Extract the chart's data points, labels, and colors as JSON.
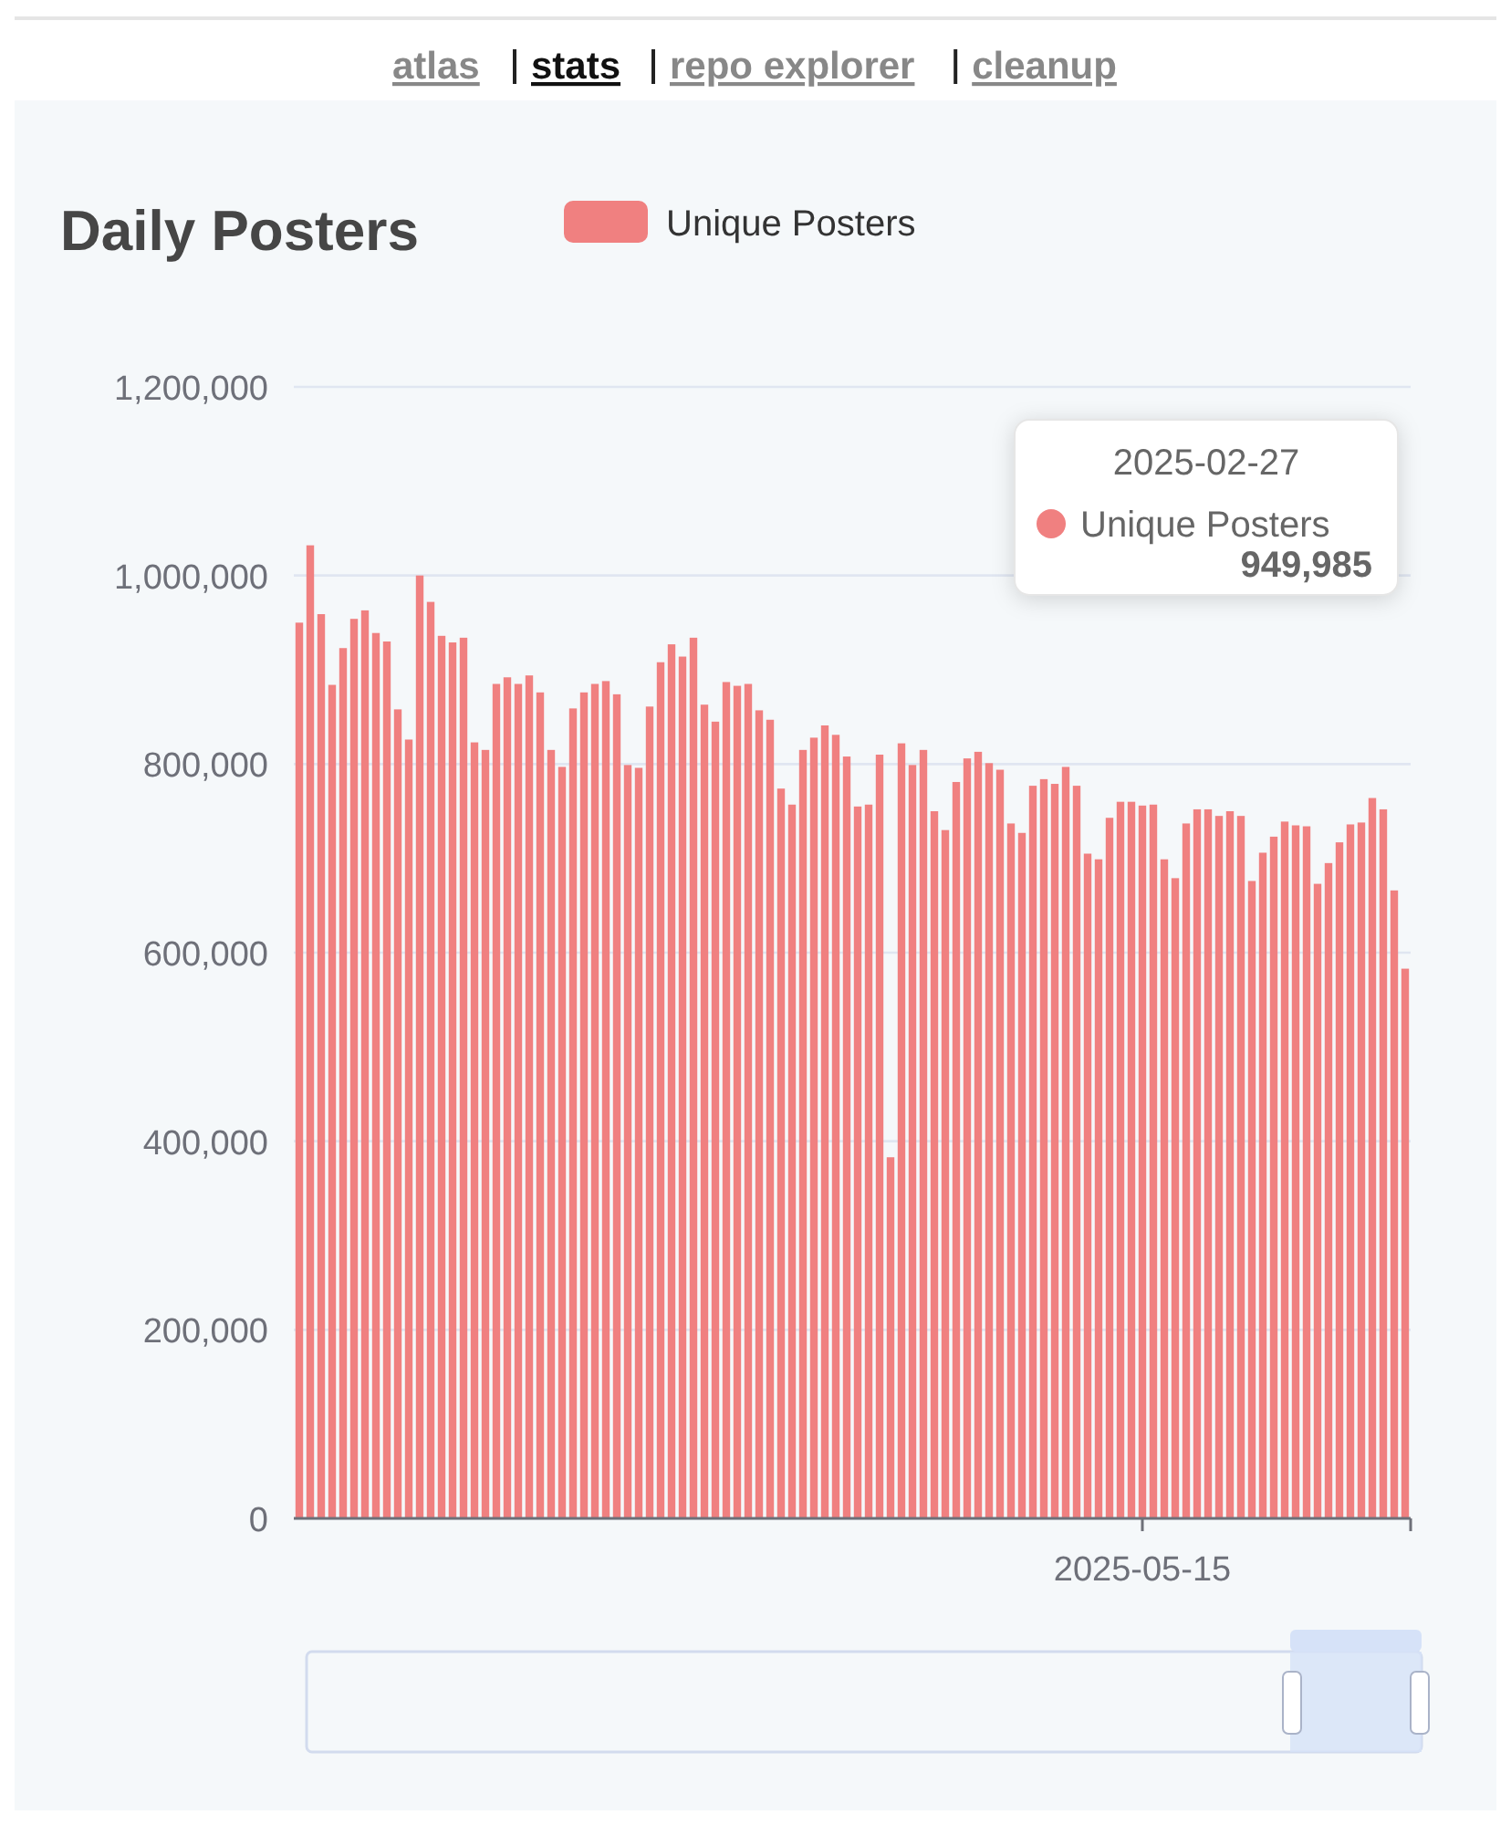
{
  "chart_data": {
    "type": "bar",
    "title": "Daily Posters",
    "annotations": [
      "atlas",
      "stats",
      "repo explorer",
      "cleanup",
      "2025-02-27",
      "949,985"
    ],
    "categories": [
      null,
      null,
      null,
      null,
      null,
      null,
      null,
      null,
      null,
      null,
      null,
      null,
      null,
      null,
      null,
      null,
      null,
      null,
      null,
      null,
      null,
      null,
      null,
      null,
      null,
      null,
      null,
      null,
      null,
      null,
      null,
      null,
      null,
      null,
      null,
      null,
      null,
      null,
      null,
      null,
      null,
      null,
      null,
      null,
      null,
      null,
      null,
      null,
      null,
      null,
      null,
      null,
      null,
      null,
      null,
      null,
      null,
      null,
      null,
      null,
      null,
      null,
      null,
      null,
      null,
      null,
      null,
      null,
      null,
      null,
      null,
      null,
      null,
      null,
      null,
      null,
      null,
      "2025-05-15",
      null,
      null,
      null,
      null,
      null,
      null,
      null,
      null,
      null,
      null,
      null,
      null,
      null,
      null,
      null,
      null,
      null,
      null,
      null,
      null,
      null,
      null,
      null,
      null
    ],
    "series": [
      {
        "name": "Unique Posters",
        "color": "#f08080",
        "values": [
          949985,
          1032000,
          959000,
          884000,
          923000,
          954000,
          963000,
          939000,
          930000,
          858000,
          826000,
          1000000,
          972000,
          936000,
          929000,
          934000,
          823000,
          815000,
          885000,
          892000,
          885000,
          894000,
          876000,
          815000,
          797000,
          859000,
          876000,
          885000,
          888000,
          874000,
          799000,
          796000,
          861000,
          908000,
          927000,
          914000,
          934000,
          863000,
          845000,
          887000,
          883000,
          885000,
          857000,
          847000,
          774000,
          757000,
          815000,
          828000,
          841000,
          831000,
          808000,
          755000,
          757000,
          810000,
          383000,
          822000,
          799000,
          815000,
          750000,
          730000,
          781000,
          806000,
          813000,
          801000,
          794000,
          737000,
          727000,
          777000,
          784000,
          779000,
          797000,
          777000,
          705000,
          699000,
          743000,
          760000,
          760000,
          756000,
          757000,
          699000,
          679000,
          737000,
          752000,
          752000,
          745000,
          750000,
          745000,
          676000,
          706000,
          723000,
          739000,
          735000,
          734000,
          673000,
          695000,
          717000,
          736000,
          738000,
          764000,
          752000,
          666000,
          583000
        ]
      }
    ],
    "ylim": [
      0,
      1200000
    ],
    "yticks": [
      {
        "value": 0,
        "label": "0"
      },
      {
        "value": 200000,
        "label": "200,000"
      },
      {
        "value": 400000,
        "label": "400,000"
      },
      {
        "value": 600000,
        "label": "600,000"
      },
      {
        "value": 800000,
        "label": "800,000"
      },
      {
        "value": 1000000,
        "label": "1,000,000"
      },
      {
        "value": 1200000,
        "label": "1,200,000"
      }
    ],
    "grid": true,
    "legend": "top"
  }
}
